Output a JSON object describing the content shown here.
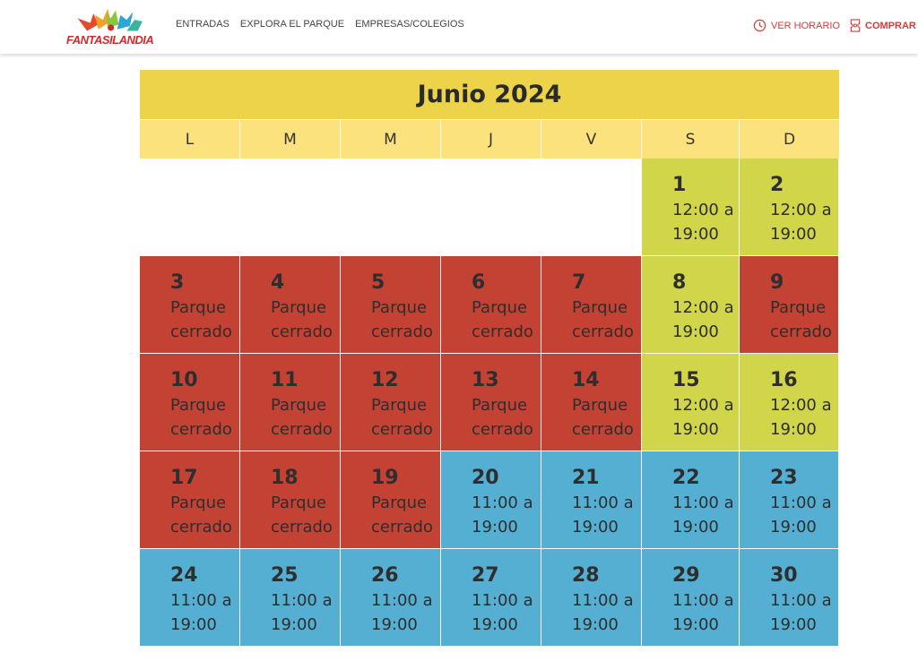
{
  "header": {
    "logo_text": "FANTASILANDIA",
    "nav": [
      "ENTRADAS",
      "EXPLORA EL PARQUE",
      "EMPRESAS/COLEGIOS"
    ],
    "schedule_label": "VER HORARIO",
    "buy_label": "COMPRAR",
    "accent": "#d43c3c"
  },
  "calendar": {
    "title": "Junio 2024",
    "weekdays": [
      "L",
      "M",
      "M",
      "J",
      "V",
      "S",
      "D"
    ],
    "leading_blanks": 5,
    "colors": {
      "closed": "#c44233",
      "weekend": "#d0d54a",
      "open": "#54afd3",
      "title_bg": "#ecd34a",
      "weekday_bg": "#fbe27c"
    },
    "days": [
      {
        "day": "1",
        "status": "weekend",
        "text": "12:00 a 19:00"
      },
      {
        "day": "2",
        "status": "weekend",
        "text": "12:00 a 19:00"
      },
      {
        "day": "3",
        "status": "closed",
        "text": "Parque cerrado"
      },
      {
        "day": "4",
        "status": "closed",
        "text": "Parque cerrado"
      },
      {
        "day": "5",
        "status": "closed",
        "text": "Parque cerrado"
      },
      {
        "day": "6",
        "status": "closed",
        "text": "Parque cerrado"
      },
      {
        "day": "7",
        "status": "closed",
        "text": "Parque cerrado"
      },
      {
        "day": "8",
        "status": "weekend",
        "text": "12:00 a 19:00"
      },
      {
        "day": "9",
        "status": "closed",
        "text": "Parque cerrado"
      },
      {
        "day": "10",
        "status": "closed",
        "text": "Parque cerrado"
      },
      {
        "day": "11",
        "status": "closed",
        "text": "Parque cerrado"
      },
      {
        "day": "12",
        "status": "closed",
        "text": "Parque cerrado"
      },
      {
        "day": "13",
        "status": "closed",
        "text": "Parque cerrado"
      },
      {
        "day": "14",
        "status": "closed",
        "text": "Parque cerrado"
      },
      {
        "day": "15",
        "status": "weekend",
        "text": "12:00 a 19:00"
      },
      {
        "day": "16",
        "status": "weekend",
        "text": "12:00 a 19:00"
      },
      {
        "day": "17",
        "status": "closed",
        "text": "Parque cerrado"
      },
      {
        "day": "18",
        "status": "closed",
        "text": "Parque cerrado"
      },
      {
        "day": "19",
        "status": "closed",
        "text": "Parque cerrado"
      },
      {
        "day": "20",
        "status": "open",
        "text": "11:00 a 19:00"
      },
      {
        "day": "21",
        "status": "open",
        "text": "11:00 a 19:00"
      },
      {
        "day": "22",
        "status": "open",
        "text": "11:00 a 19:00"
      },
      {
        "day": "23",
        "status": "open",
        "text": "11:00 a 19:00"
      },
      {
        "day": "24",
        "status": "open",
        "text": "11:00 a 19:00"
      },
      {
        "day": "25",
        "status": "open",
        "text": "11:00 a 19:00"
      },
      {
        "day": "26",
        "status": "open",
        "text": "11:00 a 19:00"
      },
      {
        "day": "27",
        "status": "open",
        "text": "11:00 a 19:00"
      },
      {
        "day": "28",
        "status": "open",
        "text": "11:00 a 19:00"
      },
      {
        "day": "29",
        "status": "open",
        "text": "11:00 a 19:00"
      },
      {
        "day": "30",
        "status": "open",
        "text": "11:00 a 19:00"
      }
    ]
  }
}
